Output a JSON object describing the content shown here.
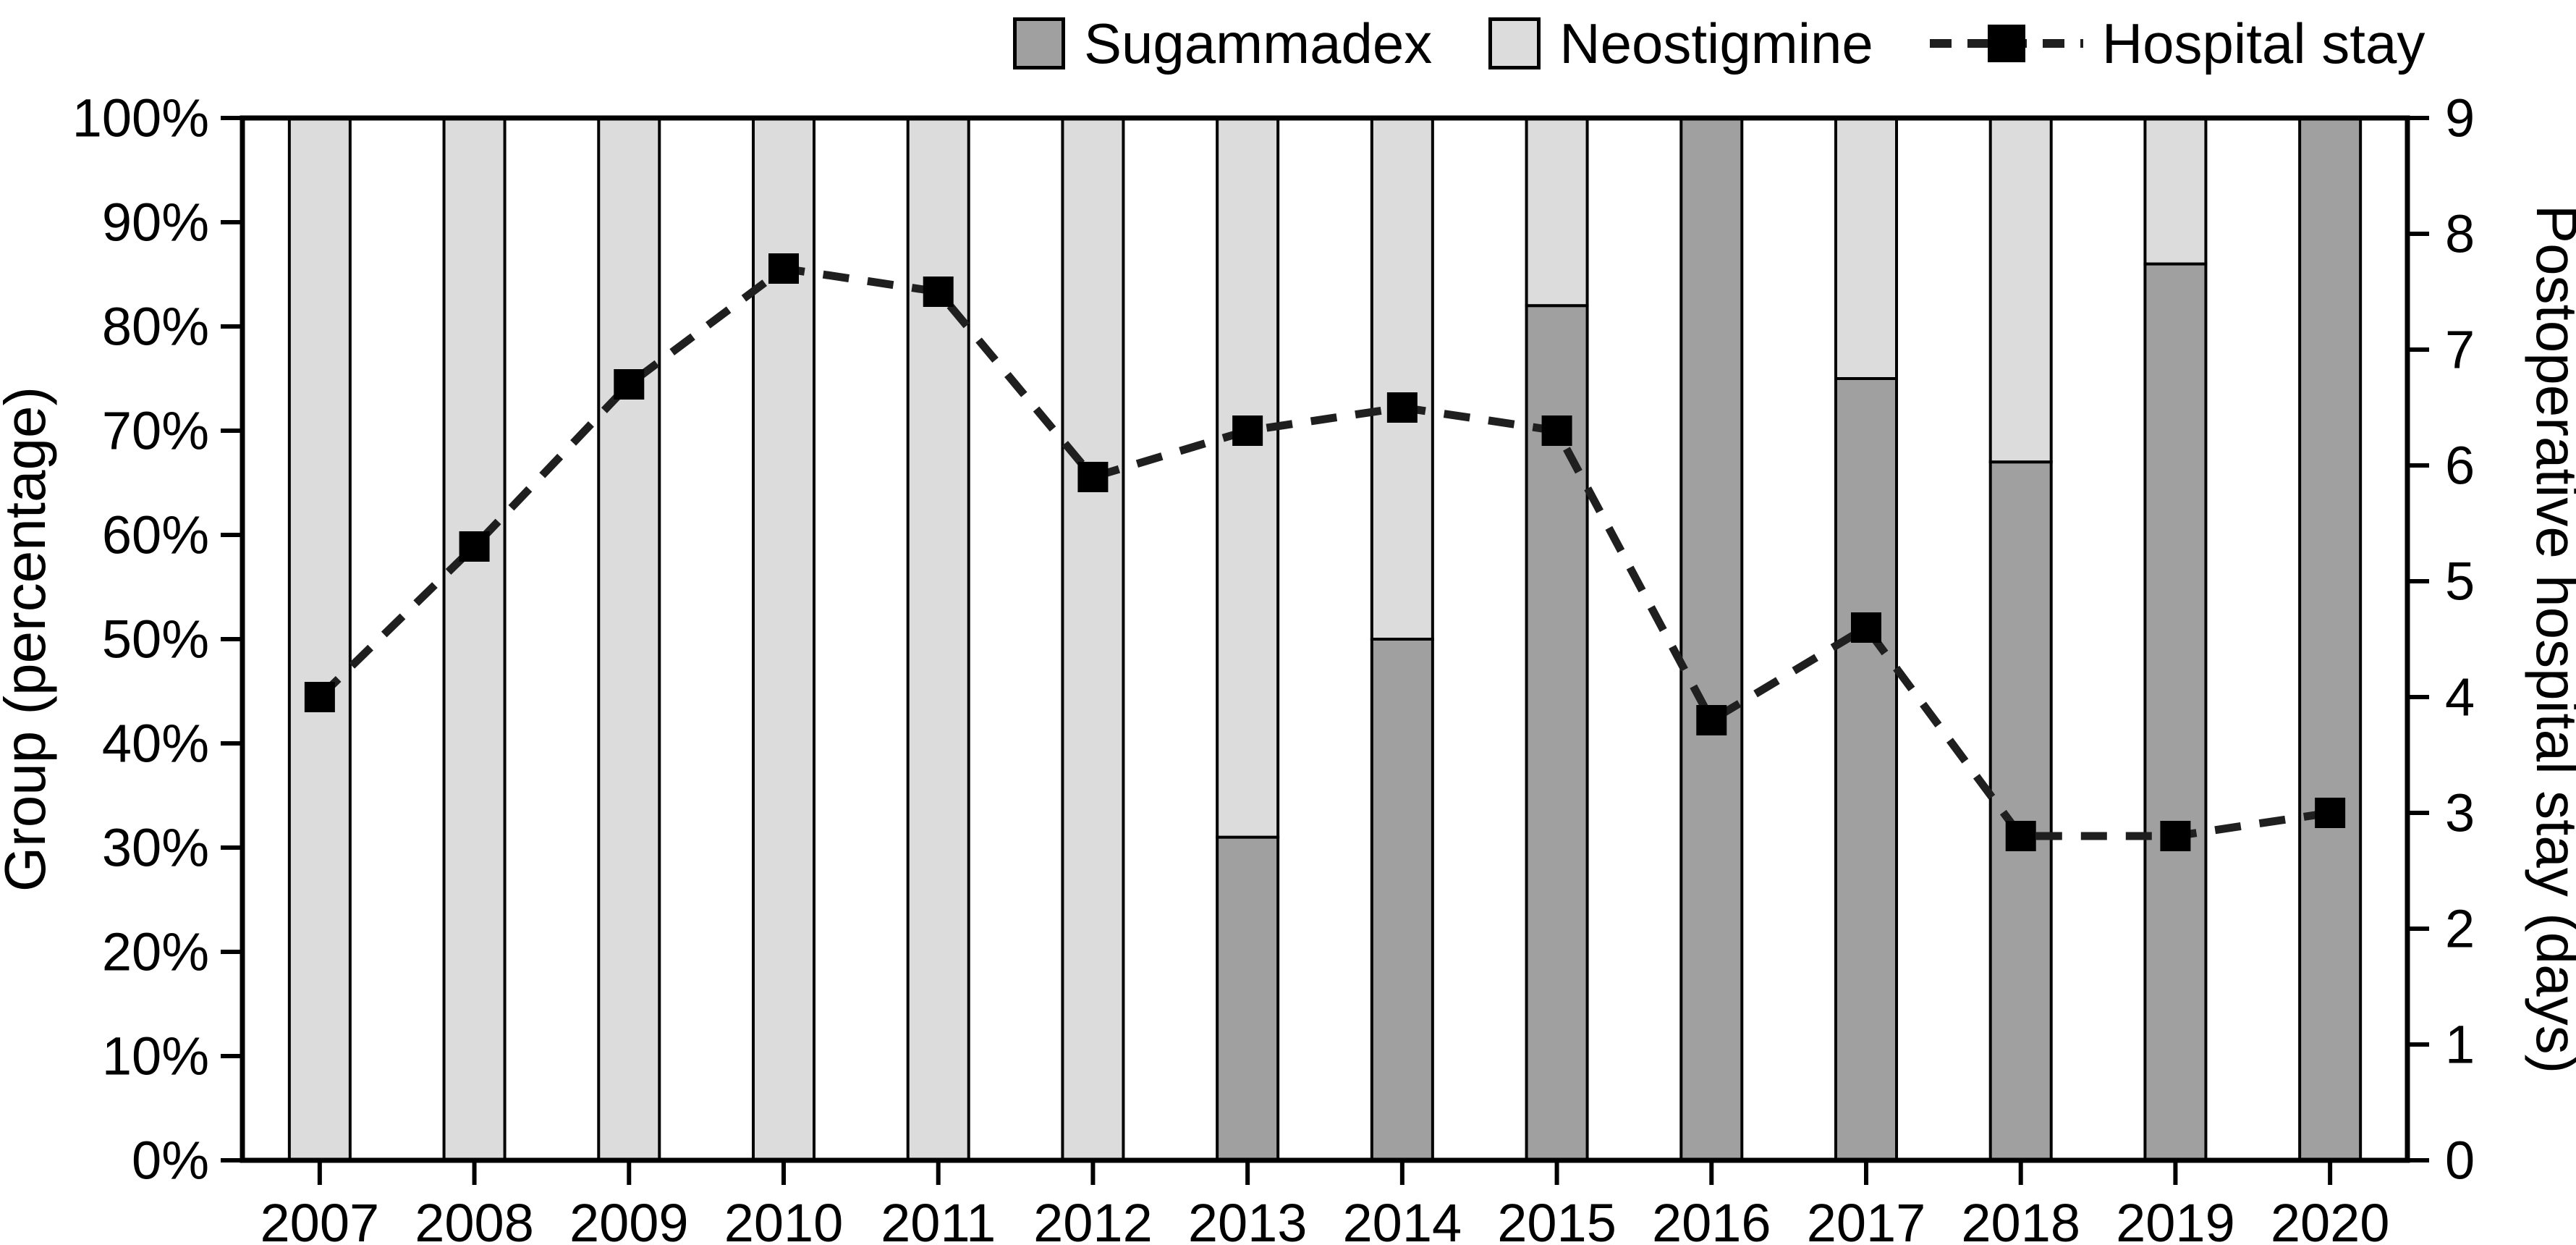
{
  "chart_data": {
    "type": "combo: 100%-stacked-bar + line (secondary axis)",
    "categories": [
      "2007",
      "2008",
      "2009",
      "2010",
      "2011",
      "2012",
      "2013",
      "2014",
      "2015",
      "2016",
      "2017",
      "2018",
      "2019",
      "2020"
    ],
    "series": [
      {
        "name": "Sugammadex",
        "kind": "bar-stacked",
        "axis": "left",
        "unit": "%",
        "color": "#a0a0a0",
        "values": [
          0,
          0,
          0,
          0,
          0,
          0,
          31,
          50,
          82,
          100,
          75,
          67,
          86,
          100
        ]
      },
      {
        "name": "Neostigmine",
        "kind": "bar-stacked",
        "axis": "left",
        "unit": "%",
        "color": "#dcdcdc",
        "values": [
          100,
          100,
          100,
          100,
          100,
          100,
          69,
          50,
          18,
          0,
          25,
          33,
          14,
          0
        ]
      },
      {
        "name": "Hospital stay",
        "kind": "dashed-line-square-markers",
        "axis": "right",
        "unit": "days",
        "color": "#1f1f1f",
        "marker_color": "#000000",
        "values": [
          4.0,
          5.3,
          6.7,
          7.7,
          7.5,
          5.9,
          6.3,
          6.5,
          6.3,
          3.8,
          4.6,
          2.8,
          2.8,
          3.0
        ]
      }
    ],
    "left_axis": {
      "title": "Group (percentage)",
      "min": 0,
      "max": 100,
      "step": 10,
      "tick_labels": [
        "0%",
        "10%",
        "20%",
        "30%",
        "40%",
        "50%",
        "60%",
        "70%",
        "80%",
        "90%",
        "100%"
      ]
    },
    "right_axis": {
      "title": "Postoperative hospital stay (days)",
      "min": 0,
      "max": 9,
      "step": 1,
      "tick_labels": [
        "0",
        "1",
        "2",
        "3",
        "4",
        "5",
        "6",
        "7",
        "8",
        "9"
      ]
    },
    "legend_position": "top-right",
    "grid": false,
    "plot_border": true,
    "bar_outline_color": "#000000",
    "background_color": "#ffffff"
  }
}
